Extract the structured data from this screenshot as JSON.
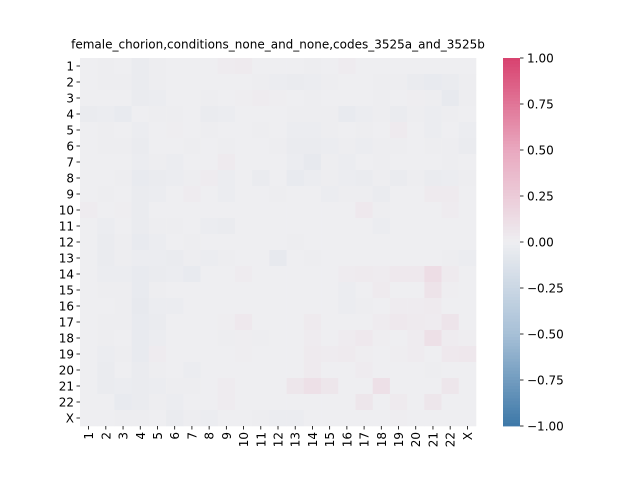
{
  "chart_data": {
    "type": "heatmap",
    "title": "female_chorion,conditions_none_and_none,codes_3525a_and_3525b",
    "categories": [
      "1",
      "2",
      "3",
      "4",
      "5",
      "6",
      "7",
      "8",
      "9",
      "10",
      "11",
      "12",
      "13",
      "14",
      "15",
      "16",
      "17",
      "18",
      "19",
      "20",
      "21",
      "22",
      "X"
    ],
    "z": [
      [
        0,
        -0.01,
        0,
        -0.03,
        -0.01,
        0,
        0,
        0,
        0.02,
        0.03,
        0,
        0,
        0,
        -0.01,
        0,
        0.02,
        0,
        0,
        0,
        0,
        0,
        0,
        0
      ],
      [
        0,
        -0.01,
        -0.01,
        -0.03,
        -0.01,
        0,
        0,
        0,
        0,
        0,
        -0.01,
        -0.02,
        -0.03,
        -0.02,
        -0.01,
        0,
        0,
        -0.01,
        -0.01,
        -0.03,
        -0.04,
        -0.03,
        -0.01
      ],
      [
        0,
        0,
        0,
        -0.03,
        -0.02,
        0,
        0,
        -0.01,
        0,
        0.01,
        0.02,
        0.01,
        0,
        -0.01,
        0,
        0,
        0,
        -0.01,
        0,
        0.01,
        -0.01,
        -0.05,
        -0.01
      ],
      [
        -0.03,
        -0.02,
        -0.04,
        0,
        -0.01,
        -0.01,
        0,
        -0.03,
        -0.02,
        0,
        0,
        0,
        -0.01,
        -0.01,
        -0.01,
        -0.04,
        -0.02,
        -0.01,
        -0.03,
        -0.01,
        -0.02,
        -0.01,
        0
      ],
      [
        0,
        -0.01,
        0,
        -0.02,
        0,
        0.01,
        0,
        -0.01,
        0,
        0,
        -0.01,
        0,
        -0.02,
        -0.02,
        -0.01,
        0,
        -0.01,
        0,
        0.03,
        0,
        -0.02,
        0,
        -0.02
      ],
      [
        0,
        -0.01,
        -0.01,
        -0.03,
        0,
        0,
        -0.01,
        0,
        -0.01,
        0,
        0,
        -0.01,
        -0.03,
        -0.03,
        -0.02,
        -0.01,
        -0.02,
        -0.01,
        -0.01,
        0,
        -0.01,
        -0.01,
        -0.03
      ],
      [
        0,
        0,
        0,
        -0.02,
        -0.01,
        -0.02,
        0,
        0,
        0.03,
        0,
        0,
        0,
        -0.02,
        -0.05,
        -0.01,
        -0.02,
        0,
        -0.01,
        0,
        0,
        0,
        -0.01,
        0
      ],
      [
        0,
        0,
        -0.01,
        -0.04,
        -0.03,
        -0.02,
        -0.01,
        0.02,
        -0.02,
        0,
        -0.03,
        0,
        -0.04,
        -0.02,
        -0.01,
        -0.02,
        -0.03,
        -0.01,
        -0.03,
        -0.01,
        -0.03,
        -0.02,
        -0.01
      ],
      [
        0,
        -0.01,
        0,
        -0.03,
        -0.02,
        0,
        0.02,
        0,
        -0.02,
        0,
        0,
        -0.01,
        0,
        0,
        -0.02,
        -0.01,
        -0.01,
        -0.03,
        0,
        0,
        0.03,
        0.03,
        0
      ],
      [
        0.02,
        0,
        0.01,
        -0.03,
        0,
        0,
        0,
        0,
        0,
        0,
        0,
        0,
        0,
        0,
        0,
        0,
        0.04,
        -0.01,
        0,
        0,
        0,
        0.02,
        0
      ],
      [
        0,
        -0.02,
        0,
        -0.03,
        -0.01,
        -0.01,
        0,
        -0.02,
        -0.03,
        0,
        0,
        0,
        0,
        0,
        0,
        0,
        0,
        -0.02,
        0,
        0,
        0,
        0,
        0
      ],
      [
        0,
        -0.03,
        -0.01,
        -0.04,
        -0.02,
        0,
        -0.01,
        0,
        0,
        0,
        0,
        0,
        -0.01,
        0,
        0,
        0,
        0,
        0,
        0,
        0,
        0,
        0,
        0
      ],
      [
        0,
        -0.03,
        -0.01,
        -0.02,
        -0.02,
        -0.03,
        -0.01,
        -0.02,
        -0.01,
        0,
        0,
        -0.05,
        0,
        -0.01,
        0,
        0,
        0,
        0,
        0,
        0,
        0,
        -0.01,
        -0.02
      ],
      [
        0,
        -0.02,
        -0.02,
        -0.04,
        -0.03,
        -0.02,
        -0.04,
        0,
        0,
        0.02,
        0,
        0,
        0,
        0,
        0,
        0.02,
        0.03,
        0.02,
        0.04,
        0.04,
        0.12,
        0.03,
        0
      ],
      [
        0,
        -0.01,
        -0.01,
        -0.04,
        -0.01,
        0,
        0,
        0,
        0,
        0,
        0,
        0,
        0,
        0,
        0,
        -0.02,
        0,
        0.03,
        0,
        0,
        0.08,
        0.01,
        0
      ],
      [
        0,
        0,
        -0.01,
        -0.05,
        -0.02,
        -0.02,
        0,
        0,
        0,
        0,
        0,
        0,
        0,
        0,
        0,
        -0.02,
        -0.01,
        0,
        0.02,
        0.02,
        0.03,
        0,
        0
      ],
      [
        0,
        -0.01,
        -0.01,
        -0.04,
        -0.03,
        0,
        0,
        0,
        0.01,
        0.04,
        0,
        0,
        0,
        0.03,
        0,
        0,
        0,
        0.02,
        0.04,
        0.03,
        0.02,
        0.07,
        0
      ],
      [
        0,
        -0.01,
        0,
        -0.04,
        -0.02,
        0,
        0,
        0,
        -0.01,
        0.01,
        -0.01,
        0,
        0,
        0.02,
        0,
        0.02,
        0.04,
        0.01,
        0,
        0.02,
        0.1,
        0.02,
        0.01
      ],
      [
        0,
        -0.02,
        -0.01,
        -0.04,
        0.02,
        0,
        0,
        0,
        0,
        0.01,
        0,
        0,
        0,
        0.03,
        0.02,
        0.03,
        0.01,
        0,
        0.01,
        0.02,
        0,
        0.04,
        0.05
      ],
      [
        0,
        -0.03,
        0,
        -0.03,
        -0.01,
        0,
        -0.02,
        0,
        0,
        0,
        0,
        0,
        0,
        0.03,
        0,
        0,
        0.02,
        0,
        0,
        0,
        -0.01,
        0,
        0
      ],
      [
        0,
        -0.03,
        -0.02,
        -0.03,
        -0.02,
        -0.01,
        -0.01,
        0,
        0.02,
        0,
        0,
        0,
        0.06,
        0.1,
        0.06,
        0,
        0,
        0.1,
        0,
        0,
        0,
        0.06,
        0
      ],
      [
        0,
        0,
        -0.04,
        -0.03,
        -0.01,
        -0.02,
        0,
        0,
        0.02,
        0,
        0,
        0,
        0,
        0,
        0,
        0,
        0.06,
        0,
        0.03,
        0,
        0.06,
        0,
        0
      ],
      [
        0,
        0,
        -0.01,
        -0.01,
        0,
        -0.03,
        -0.01,
        -0.02,
        0,
        0,
        -0.01,
        -0.02,
        -0.02,
        0,
        0,
        0,
        0,
        0,
        0.01,
        0,
        0,
        0,
        0
      ]
    ],
    "zlim": [
      -1,
      1
    ],
    "colorscale": [
      "#3d78a8",
      "#a7c0d7",
      "#eeeef1",
      "#e9a8bf",
      "#d8426f"
    ],
    "zticks": [
      {
        "value": 1,
        "label": "1.00"
      },
      {
        "value": 0.75,
        "label": "0.75"
      },
      {
        "value": 0.5,
        "label": "0.50"
      },
      {
        "value": 0.25,
        "label": "0.25"
      },
      {
        "value": 0,
        "label": "0.00"
      },
      {
        "value": -0.25,
        "label": "−0.25"
      },
      {
        "value": -0.5,
        "label": "−0.50"
      },
      {
        "value": -0.75,
        "label": "−0.75"
      },
      {
        "value": -1,
        "label": "−1.00"
      }
    ]
  }
}
